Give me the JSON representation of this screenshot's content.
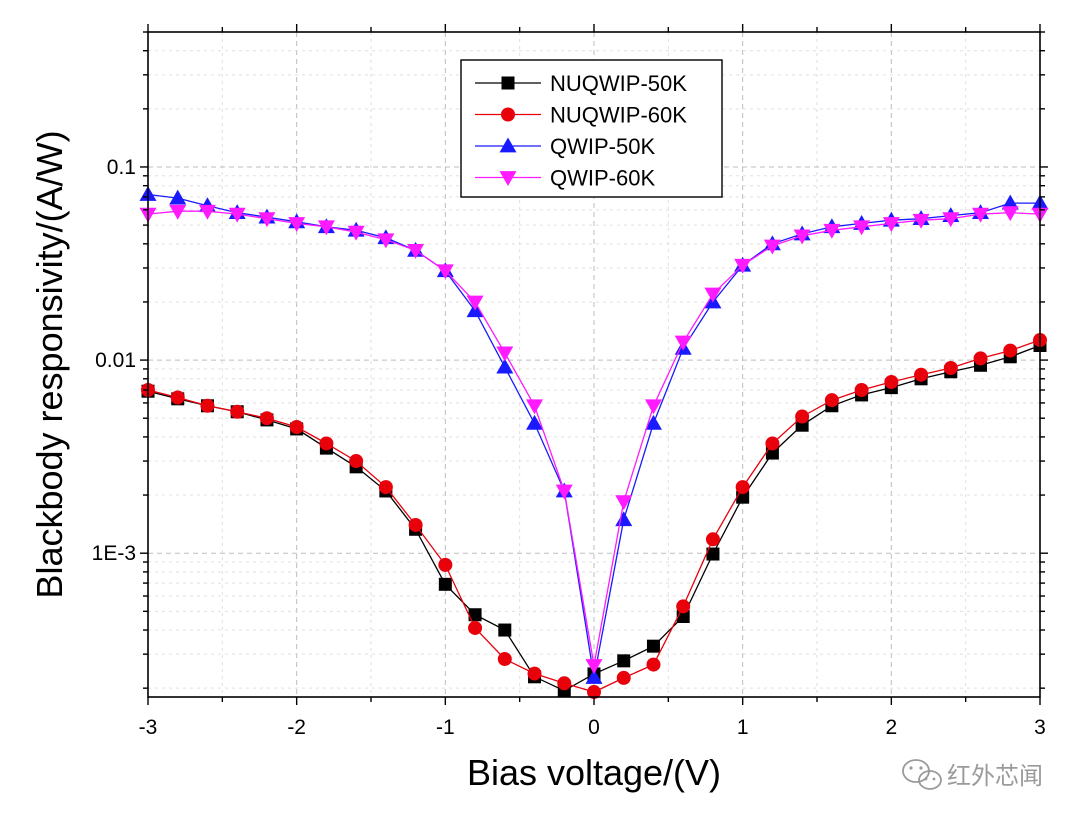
{
  "chart_data": {
    "type": "line",
    "yscale": "log",
    "xlabel": "Bias voltage/(V)",
    "ylabel": "Blackbody responsivity/(A/W)",
    "xlim": [
      -3,
      3
    ],
    "ylim": [
      0.00018,
      0.5
    ],
    "xticks": [
      -3,
      -2,
      -1,
      0,
      1,
      2,
      3
    ],
    "xtick_labels": [
      "-3",
      "-2",
      "-1",
      "0",
      "1",
      "2",
      "3"
    ],
    "yticks": [
      0.001,
      0.01,
      0.1
    ],
    "ytick_labels": [
      "1E-3",
      "0.01",
      "0.1"
    ],
    "grid": true,
    "legend_position": "top-center",
    "series": [
      {
        "name": "NUQWIP-50K",
        "color": "#000000",
        "marker": "square",
        "x": [
          -3,
          -2.8,
          -2.6,
          -2.4,
          -2.2,
          -2,
          -1.8,
          -1.6,
          -1.4,
          -1.2,
          -1,
          -0.8,
          -0.6,
          -0.4,
          -0.2,
          0,
          0.2,
          0.4,
          0.6,
          0.8,
          1,
          1.2,
          1.4,
          1.6,
          1.8,
          2,
          2.2,
          2.4,
          2.6,
          2.8,
          3
        ],
        "y": [
          0.0069,
          0.0063,
          0.0058,
          0.0054,
          0.0049,
          0.0044,
          0.0035,
          0.0028,
          0.0021,
          0.00133,
          0.00069,
          0.00048,
          0.0004,
          0.000229,
          0.000194,
          0.000237,
          0.000277,
          0.00033,
          0.00047,
          0.00099,
          0.00195,
          0.0033,
          0.0046,
          0.0058,
          0.0066,
          0.0072,
          0.008,
          0.0087,
          0.0094,
          0.0104,
          0.0119
        ]
      },
      {
        "name": "NUQWIP-60K",
        "color": "#e8000b",
        "marker": "circle",
        "x": [
          -3,
          -2.8,
          -2.6,
          -2.4,
          -2.2,
          -2,
          -1.8,
          -1.6,
          -1.4,
          -1.2,
          -1,
          -0.8,
          -0.6,
          -0.4,
          -0.2,
          0,
          0.2,
          0.4,
          0.6,
          0.8,
          1,
          1.2,
          1.4,
          1.6,
          1.8,
          2,
          2.2,
          2.4,
          2.6,
          2.8,
          3
        ],
        "y": [
          0.007,
          0.0064,
          0.0058,
          0.0054,
          0.005,
          0.0045,
          0.0037,
          0.003,
          0.0022,
          0.0014,
          0.00087,
          0.00041,
          0.000283,
          0.000238,
          0.000212,
          0.000191,
          0.000226,
          0.000265,
          0.00053,
          0.00118,
          0.0022,
          0.0037,
          0.0051,
          0.0062,
          0.007,
          0.0077,
          0.0084,
          0.0091,
          0.0102,
          0.0112,
          0.0127
        ]
      },
      {
        "name": "QWIP-50K",
        "color": "#1a1aff",
        "marker": "triangle-up",
        "x": [
          -3,
          -2.8,
          -2.6,
          -2.4,
          -2.2,
          -2,
          -1.8,
          -1.6,
          -1.4,
          -1.2,
          -1,
          -0.8,
          -0.6,
          -0.4,
          -0.2,
          0,
          0.2,
          0.4,
          0.6,
          0.8,
          1,
          1.2,
          1.4,
          1.6,
          1.8,
          2,
          2.2,
          2.4,
          2.6,
          2.8,
          3
        ],
        "y": [
          0.072,
          0.069,
          0.063,
          0.058,
          0.055,
          0.052,
          0.049,
          0.047,
          0.043,
          0.037,
          0.029,
          0.018,
          0.0092,
          0.0047,
          0.0021,
          0.000227,
          0.00149,
          0.0047,
          0.0115,
          0.02,
          0.031,
          0.04,
          0.045,
          0.049,
          0.051,
          0.053,
          0.054,
          0.056,
          0.058,
          0.065,
          0.065
        ]
      },
      {
        "name": "QWIP-60K",
        "color": "#ff1aff",
        "marker": "triangle-down",
        "x": [
          -3,
          -2.8,
          -2.6,
          -2.4,
          -2.2,
          -2,
          -1.8,
          -1.6,
          -1.4,
          -1.2,
          -1,
          -0.8,
          -0.6,
          -0.4,
          -0.2,
          0,
          0.2,
          0.4,
          0.6,
          0.8,
          1,
          1.2,
          1.4,
          1.6,
          1.8,
          2,
          2.2,
          2.4,
          2.6,
          2.8,
          3
        ],
        "y": [
          0.057,
          0.059,
          0.059,
          0.057,
          0.054,
          0.051,
          0.049,
          0.046,
          0.042,
          0.037,
          0.029,
          0.02,
          0.0109,
          0.0058,
          0.0021,
          0.000262,
          0.00185,
          0.0058,
          0.0124,
          0.022,
          0.031,
          0.039,
          0.044,
          0.047,
          0.049,
          0.051,
          0.053,
          0.054,
          0.057,
          0.058,
          0.057
        ]
      }
    ]
  },
  "watermark": {
    "text": "红外芯闻",
    "icon": "wechat-icon"
  }
}
